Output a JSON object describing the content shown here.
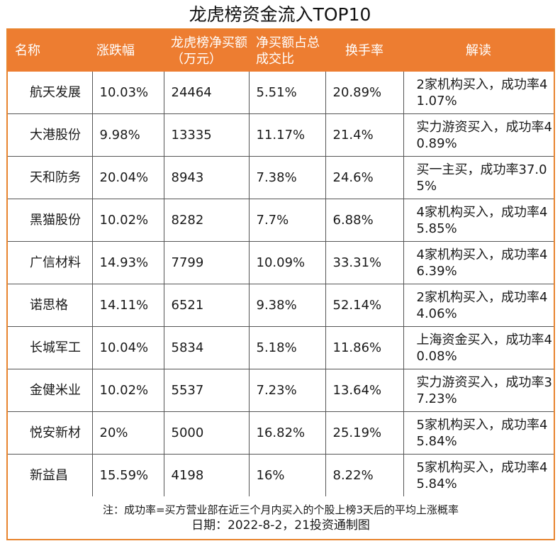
{
  "title": "龙虎榜资金流入TOP10",
  "headers": [
    "名称",
    "涨跌幅",
    "龙虎榜净买额（万元）",
    "净买额占总成交比",
    "换手率",
    "解读"
  ],
  "rows": [
    {
      "name": "航天发展",
      "change": "10.03%",
      "net_buy": "24464",
      "ratio": "5.51%",
      "turnover": "20.89%",
      "interpretation": "2家机构买入，成功率41.07%"
    },
    {
      "name": "大港股份",
      "change": "9.98%",
      "net_buy": "13335",
      "ratio": "11.17%",
      "turnover": "21.4%",
      "interpretation": "实力游资买入，成功率40.89%"
    },
    {
      "name": "天和防务",
      "change": "20.04%",
      "net_buy": "8943",
      "ratio": "7.38%",
      "turnover": "24.6%",
      "interpretation": "买一主买，成功率37.05%"
    },
    {
      "name": "黑猫股份",
      "change": "10.02%",
      "net_buy": "8282",
      "ratio": "7.7%",
      "turnover": "6.88%",
      "interpretation": "4家机构买入，成功率45.85%"
    },
    {
      "name": "广信材料",
      "change": "14.93%",
      "net_buy": "7799",
      "ratio": "10.09%",
      "turnover": "33.31%",
      "interpretation": "4家机构买入，成功率46.39%"
    },
    {
      "name": "诺思格",
      "change": "14.11%",
      "net_buy": "6521",
      "ratio": "9.38%",
      "turnover": "52.14%",
      "interpretation": "2家机构买入，成功率44.06%"
    },
    {
      "name": "长城军工",
      "change": "10.04%",
      "net_buy": "5834",
      "ratio": "5.18%",
      "turnover": "11.86%",
      "interpretation": "上海资金买入，成功率40.08%"
    },
    {
      "name": "金健米业",
      "change": "10.02%",
      "net_buy": "5537",
      "ratio": "7.23%",
      "turnover": "13.64%",
      "interpretation": "实力游资买入，成功率37.23%"
    },
    {
      "name": "悦安新材",
      "change": "20%",
      "net_buy": "5000",
      "ratio": "16.82%",
      "turnover": "25.19%",
      "interpretation": "5家机构买入，成功率45.84%"
    },
    {
      "name": "新益昌",
      "change": "15.59%",
      "net_buy": "4198",
      "ratio": "16%",
      "turnover": "8.22%",
      "interpretation": "5家机构买入，成功率45.84%"
    }
  ],
  "footnote": "注：成功率=买方营业部在近三个月内买入的个股上榜3天后的平均上涨概率",
  "date_line": "日期：2022-8-2，21投资通制图",
  "colors": {
    "header_bg": "#ed7d31",
    "border": "#e8842e"
  }
}
